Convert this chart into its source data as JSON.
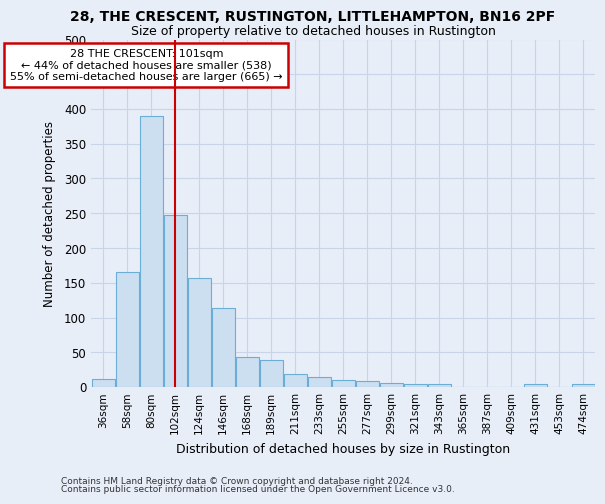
{
  "title1": "28, THE CRESCENT, RUSTINGTON, LITTLEHAMPTON, BN16 2PF",
  "title2": "Size of property relative to detached houses in Rustington",
  "xlabel": "Distribution of detached houses by size in Rustington",
  "ylabel": "Number of detached properties",
  "footer1": "Contains HM Land Registry data © Crown copyright and database right 2024.",
  "footer2": "Contains public sector information licensed under the Open Government Licence v3.0.",
  "categories": [
    "36sqm",
    "58sqm",
    "80sqm",
    "102sqm",
    "124sqm",
    "146sqm",
    "168sqm",
    "189sqm",
    "211sqm",
    "233sqm",
    "255sqm",
    "277sqm",
    "299sqm",
    "321sqm",
    "343sqm",
    "365sqm",
    "387sqm",
    "409sqm",
    "431sqm",
    "453sqm",
    "474sqm"
  ],
  "values": [
    12,
    165,
    390,
    248,
    157,
    113,
    43,
    39,
    18,
    14,
    10,
    9,
    6,
    4,
    4,
    0,
    0,
    0,
    5,
    0,
    5
  ],
  "bar_color": "#ccdff0",
  "bar_edge_color": "#6aaed6",
  "grid_color": "#c8d4e8",
  "vline_color": "#cc0000",
  "annotation_text": "28 THE CRESCENT: 101sqm\n← 44% of detached houses are smaller (538)\n55% of semi-detached houses are larger (665) →",
  "annotation_box_color": "#ffffff",
  "annotation_box_edge": "#cc0000",
  "ylim": [
    0,
    500
  ],
  "yticks": [
    0,
    50,
    100,
    150,
    200,
    250,
    300,
    350,
    400,
    450,
    500
  ],
  "bg_color": "#e8eef8",
  "title_fontsize": 10,
  "subtitle_fontsize": 9
}
